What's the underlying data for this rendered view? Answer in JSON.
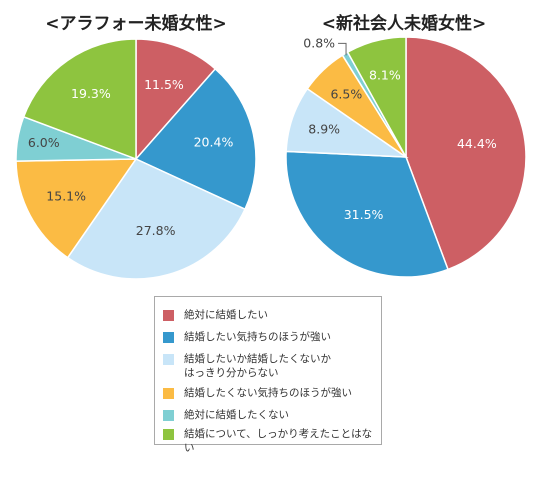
{
  "chart_data": [
    {
      "type": "pie",
      "title": "<アラフォー未婚女性>",
      "categories": [
        "絶対に結婚したい",
        "結婚したい気持ちのほうが強い",
        "結婚したいか結婚したくないか\nはっきり分からない",
        "結婚したくない気持ちのほうが強い",
        "絶対に結婚したくない",
        "結婚について、しっかり考えたことはない"
      ],
      "values": [
        11.5,
        20.4,
        27.8,
        15.1,
        6.0,
        19.3
      ],
      "value_labels": [
        "11.5%",
        "20.4%",
        "27.8%",
        "15.1%",
        "6.0%",
        "19.3%"
      ]
    },
    {
      "type": "pie",
      "title": "<新社会人未婚女性>",
      "categories": [
        "絶対に結婚したい",
        "結婚したい気持ちのほうが強い",
        "結婚したいか結婚したくないか\nはっきり分からない",
        "結婚したくない気持ちのほうが強い",
        "絶対に結婚したくない",
        "結婚について、しっかり考えたことはない"
      ],
      "values": [
        44.4,
        31.5,
        8.9,
        6.5,
        0.8,
        8.1
      ],
      "value_labels": [
        "44.4%",
        "31.5%",
        "8.9%",
        "6.5%",
        "0.8%",
        "8.1%"
      ]
    }
  ],
  "legend": {
    "items": [
      "絶対に結婚したい",
      "結婚したい気持ちのほうが強い",
      "結婚したいか結婚したくないか\nはっきり分からない",
      "結婚したくない気持ちのほうが強い",
      "絶対に結婚したくない",
      "結婚について、しっかり考えたことはない"
    ]
  },
  "colors": [
    "#cd5f64",
    "#3598cd",
    "#c8e5f8",
    "#fbbb44",
    "#7fcfd3",
    "#8ec43f"
  ],
  "label_colors": [
    "#ffffff",
    "#ffffff",
    "#444444",
    "#444444",
    "#444444",
    "#ffffff"
  ]
}
